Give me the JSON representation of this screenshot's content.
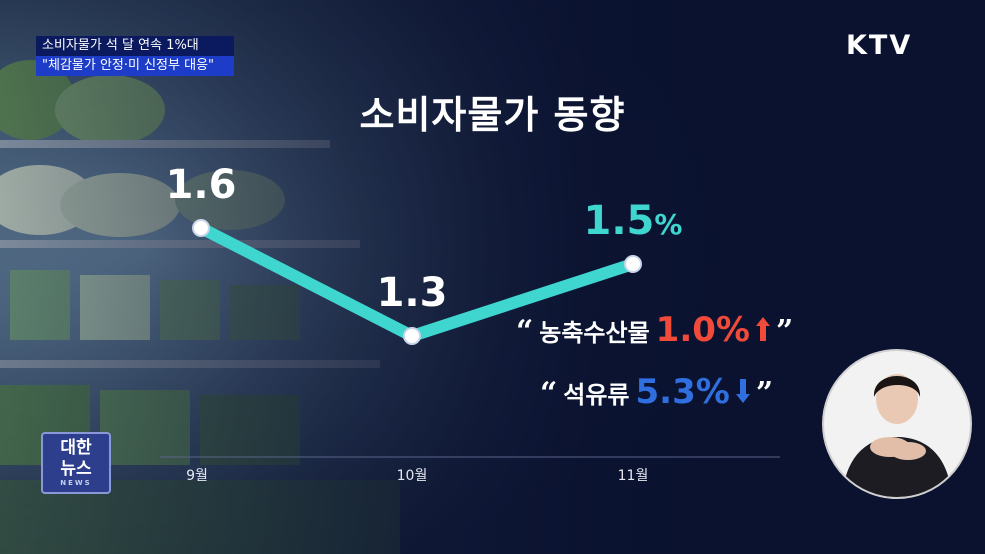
{
  "ticker": {
    "line1": "소비자물가 석 달 연속 1%대",
    "line2": "\"체감물가 안정·미 신정부 대응\""
  },
  "brand": "KTV",
  "logo": {
    "line1": "대한",
    "line2": "뉴스",
    "line3": "NEWS"
  },
  "chart_data": {
    "type": "line",
    "title": "소비자물가 동향",
    "categories": [
      "9월",
      "10월",
      "11월"
    ],
    "values": [
      1.6,
      1.3,
      1.5
    ],
    "value_labels": [
      "1.6",
      "1.3",
      "1.5"
    ],
    "unit": "%",
    "xlabel": "",
    "ylabel": "",
    "grid": false,
    "colors": {
      "line": "#3fd6cf",
      "marker": "#ffffff",
      "highlight_label": "#3fd6cf"
    }
  },
  "notes": [
    {
      "label": "농축수산물",
      "value": "1.0%",
      "direction": "up",
      "color": "#f04a3a",
      "icon": "up-arrow-icon"
    },
    {
      "label": "석유류",
      "value": "5.3%",
      "direction": "down",
      "color": "#2f6fe0",
      "icon": "down-arrow-icon"
    }
  ],
  "quote_open": "“",
  "quote_close": "”"
}
